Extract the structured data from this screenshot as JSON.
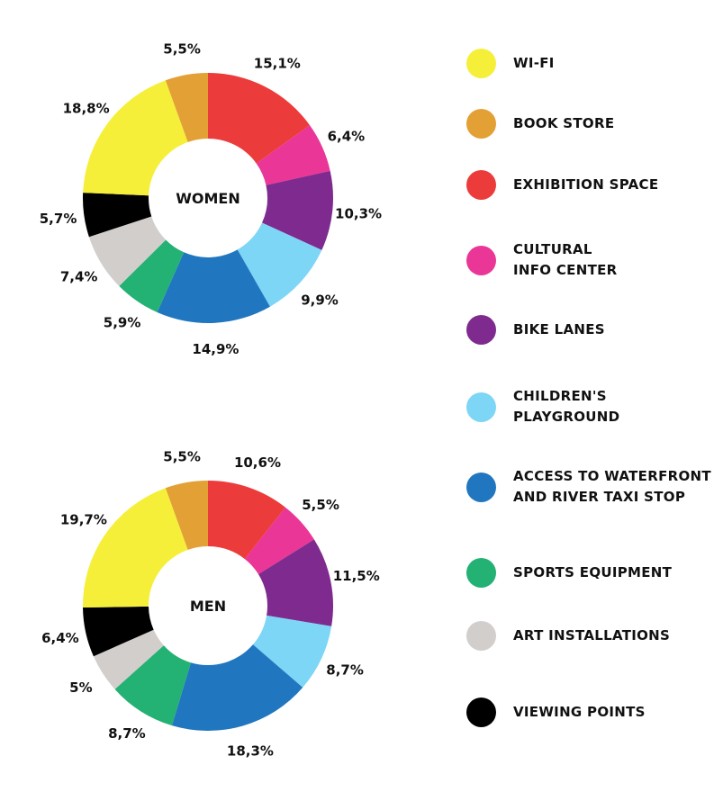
{
  "colors": {
    "wifi": "#f5ef3a",
    "book_store": "#e3a034",
    "exhibition_space": "#ec3b3b",
    "cultural_info_center": "#ea3697",
    "bike_lanes": "#7e2a8e",
    "childrens_playground": "#7dd6f5",
    "access_waterfront": "#2077c0",
    "sports_equipment": "#24b174",
    "art_installations": "#d2cecc",
    "viewing_points": "#000000"
  },
  "legend": [
    {
      "key": "wifi",
      "lines": [
        "WI-FI"
      ]
    },
    {
      "key": "book_store",
      "lines": [
        "BOOK STORE"
      ]
    },
    {
      "key": "exhibition_space",
      "lines": [
        "EXHIBITION SPACE"
      ]
    },
    {
      "key": "cultural_info_center",
      "lines": [
        "CULTURAL",
        "INFO CENTER"
      ]
    },
    {
      "key": "bike_lanes",
      "lines": [
        "BIKE LANES"
      ]
    },
    {
      "key": "childrens_playground",
      "lines": [
        "CHILDREN'S",
        "PLAYGROUND"
      ]
    },
    {
      "key": "access_waterfront",
      "lines": [
        "ACCESS TO WATERFRONT",
        "AND RIVER TAXI STOP"
      ]
    },
    {
      "key": "sports_equipment",
      "lines": [
        "SPORTS EQUIPMENT"
      ]
    },
    {
      "key": "art_installations",
      "lines": [
        "ART INSTALLATIONS"
      ]
    },
    {
      "key": "viewing_points",
      "lines": [
        "VIEWING POINTS"
      ]
    }
  ],
  "chart_data": [
    {
      "type": "pie",
      "title": "WOMEN",
      "donut": true,
      "slices": [
        {
          "key": "exhibition_space",
          "label": "EXHIBITION SPACE",
          "value": 15.1,
          "label_text": "15,1%"
        },
        {
          "key": "cultural_info_center",
          "label": "CULTURAL INFO CENTER",
          "value": 6.4,
          "label_text": "6,4%"
        },
        {
          "key": "bike_lanes",
          "label": "BIKE LANES",
          "value": 10.3,
          "label_text": "10,3%"
        },
        {
          "key": "childrens_playground",
          "label": "CHILDREN'S PLAYGROUND",
          "value": 9.9,
          "label_text": "9,9%"
        },
        {
          "key": "access_waterfront",
          "label": "ACCESS TO WATERFRONT AND RIVER TAXI STOP",
          "value": 14.9,
          "label_text": "14,9%"
        },
        {
          "key": "sports_equipment",
          "label": "SPORTS EQUIPMENT",
          "value": 5.9,
          "label_text": "5,9%"
        },
        {
          "key": "art_installations",
          "label": "ART INSTALLATIONS",
          "value": 7.4,
          "label_text": "7,4%"
        },
        {
          "key": "viewing_points",
          "label": "VIEWING POINTS",
          "value": 5.7,
          "label_text": "5,7%"
        },
        {
          "key": "wifi",
          "label": "WI-FI",
          "value": 18.8,
          "label_text": "18,8%"
        },
        {
          "key": "book_store",
          "label": "BOOK STORE",
          "value": 5.5,
          "label_text": "5,5%"
        }
      ]
    },
    {
      "type": "pie",
      "title": "MEN",
      "donut": true,
      "slices": [
        {
          "key": "exhibition_space",
          "label": "EXHIBITION SPACE",
          "value": 10.6,
          "label_text": "10,6%"
        },
        {
          "key": "cultural_info_center",
          "label": "CULTURAL INFO CENTER",
          "value": 5.5,
          "label_text": "5,5%"
        },
        {
          "key": "bike_lanes",
          "label": "BIKE LANES",
          "value": 11.5,
          "label_text": "11,5%"
        },
        {
          "key": "childrens_playground",
          "label": "CHILDREN'S PLAYGROUND",
          "value": 8.7,
          "label_text": "8,7%"
        },
        {
          "key": "access_waterfront",
          "label": "ACCESS TO WATERFRONT AND RIVER TAXI STOP",
          "value": 18.3,
          "label_text": "18,3%"
        },
        {
          "key": "sports_equipment",
          "label": "SPORTS EQUIPMENT",
          "value": 8.7,
          "label_text": "8,7%"
        },
        {
          "key": "art_installations",
          "label": "ART INSTALLATIONS",
          "value": 5.0,
          "label_text": "5%"
        },
        {
          "key": "viewing_points",
          "label": "VIEWING POINTS",
          "value": 6.4,
          "label_text": "6,4%"
        },
        {
          "key": "wifi",
          "label": "WI-FI",
          "value": 19.7,
          "label_text": "19,7%"
        },
        {
          "key": "book_store",
          "label": "BOOK STORE",
          "value": 5.5,
          "label_text": "5,5%"
        }
      ]
    }
  ]
}
